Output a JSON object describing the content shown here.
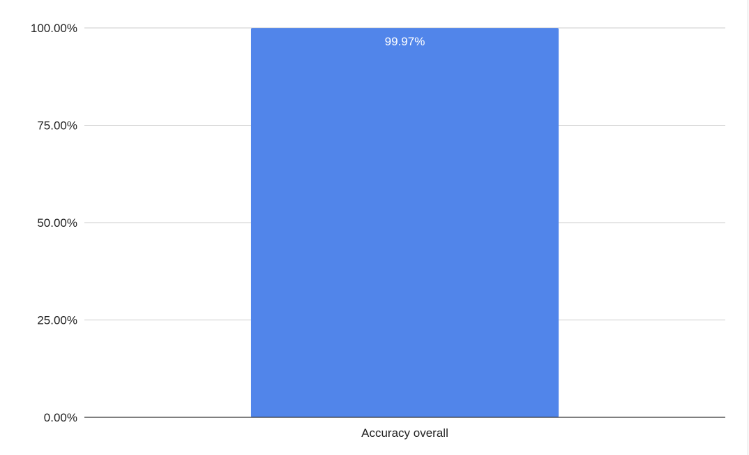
{
  "chart_data": {
    "type": "bar",
    "title": "",
    "xlabel": "",
    "ylabel": "",
    "categories": [
      "Accuracy overall"
    ],
    "values": [
      0.9997
    ],
    "data_labels": [
      "99.97%"
    ],
    "ylim": [
      0,
      1
    ],
    "yticks": [
      0,
      0.25,
      0.5,
      0.75,
      1
    ],
    "ytick_labels": [
      "0.00%",
      "25.00%",
      "50.00%",
      "75.00%",
      "100.00%"
    ],
    "grid": true,
    "legend": "none",
    "colors": {
      "bar": "#5185ea",
      "grid": "#cccccc",
      "axis": "#333333",
      "text": "#222222",
      "data_label": "#ffffff"
    }
  }
}
